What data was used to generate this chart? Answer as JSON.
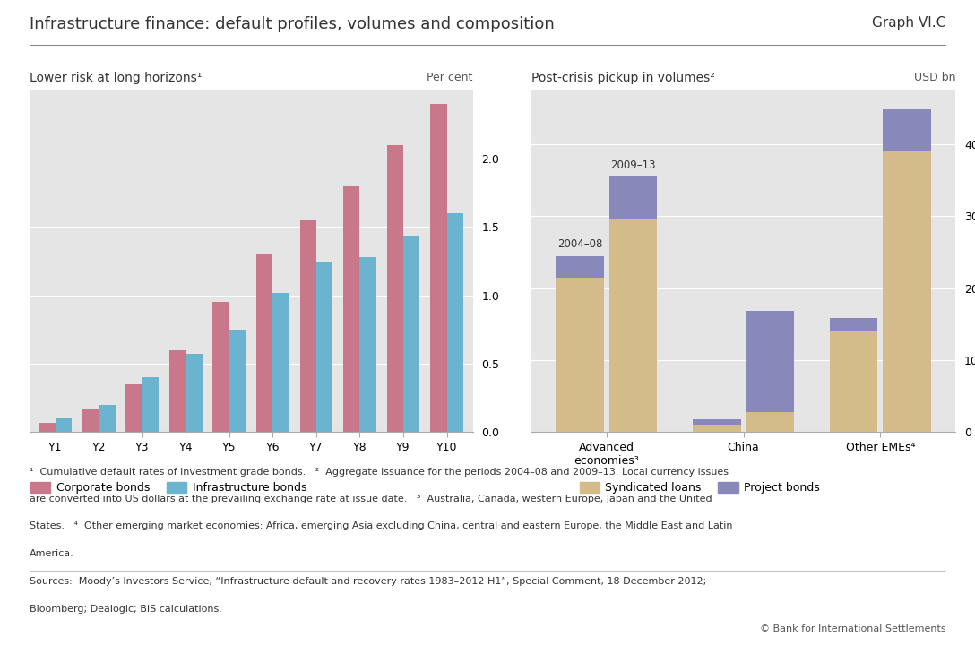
{
  "title": "Infrastructure finance: default profiles, volumes and composition",
  "graph_label": "Graph VI.C",
  "left_subtitle": "Lower risk at long horizons¹",
  "right_subtitle": "Post-crisis pickup in volumes²",
  "left_ylabel": "Per cent",
  "right_ylabel": "USD bn",
  "left_categories": [
    "Y1",
    "Y2",
    "Y3",
    "Y4",
    "Y5",
    "Y6",
    "Y7",
    "Y8",
    "Y9",
    "Y10"
  ],
  "corporate_bonds": [
    0.07,
    0.17,
    0.35,
    0.6,
    0.95,
    1.3,
    1.55,
    1.8,
    2.1,
    2.4
  ],
  "infrastructure_bonds": [
    0.1,
    0.2,
    0.4,
    0.57,
    0.75,
    1.02,
    1.25,
    1.28,
    1.44,
    1.6
  ],
  "corp_color": "#c8788a",
  "infra_color": "#6ab4d0",
  "left_ylim": [
    0,
    2.5
  ],
  "left_yticks": [
    0.0,
    0.5,
    1.0,
    1.5,
    2.0
  ],
  "right_xlabels_raw": [
    "Advanced\neconomies³",
    "China",
    "Other EMEs⁴"
  ],
  "period1_label": "2004–08",
  "period2_label": "2009–13",
  "adv_sl_1": 215,
  "adv_pb_1": 30,
  "adv_sl_2": 295,
  "adv_pb_2": 60,
  "chn_sl_1": 10,
  "chn_pb_1": 8,
  "chn_sl_2": 28,
  "chn_pb_2": 140,
  "eme_sl_1": 140,
  "eme_pb_1": 18,
  "eme_sl_2": 390,
  "eme_pb_2": 58,
  "syndicated_loans_color": "#d4bc8a",
  "project_bonds_color": "#8888bb",
  "right_ylim": [
    0,
    475
  ],
  "right_yticks": [
    0,
    100,
    200,
    300,
    400
  ],
  "background_color": "#e5e5e5",
  "footnote1": "¹  Cumulative default rates of investment grade bonds.   ²  Aggregate issuance for the periods 2004–08 and 2009–13. Local currency issues",
  "footnote2": "are converted into US dollars at the prevailing exchange rate at issue date.   ³  Australia, Canada, western Europe, Japan and the United",
  "footnote3": "States.   ⁴  Other emerging market economies: Africa, emerging Asia excluding China, central and eastern Europe, the Middle East and Latin",
  "footnote4": "America.",
  "sources": "Sources:  Moody’s Investors Service, “Infrastructure default and recovery rates 1983–2012 H1”, Special Comment, 18 December 2012;",
  "sources2": "Bloomberg; Dealogic; BIS calculations.",
  "copyright": "© Bank for International Settlements"
}
